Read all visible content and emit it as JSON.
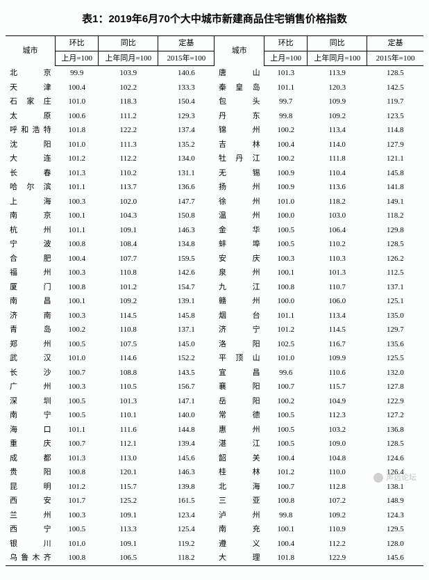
{
  "title": "表1：2019年6月70个大中城市新建商品住宅销售价格指数",
  "header": {
    "city": "城市",
    "mom": "环比",
    "yoy": "同比",
    "base": "定基",
    "mom_sub": "上月=100",
    "yoy_sub": "上年同月=100",
    "base_sub": "2015年=100"
  },
  "rows": [
    {
      "l": {
        "city": "北　　京",
        "mom": "99.9",
        "yoy": "103.9",
        "base": "140.6"
      },
      "r": {
        "city": "唐　　山",
        "mom": "101.3",
        "yoy": "113.9",
        "base": "128.5"
      }
    },
    {
      "l": {
        "city": "天　　津",
        "mom": "100.4",
        "yoy": "102.2",
        "base": "133.3"
      },
      "r": {
        "city": "秦 皇 岛",
        "mom": "101.1",
        "yoy": "120.3",
        "base": "142.5"
      }
    },
    {
      "l": {
        "city": "石 家 庄",
        "mom": "101.0",
        "yoy": "118.3",
        "base": "150.4"
      },
      "r": {
        "city": "包　　头",
        "mom": "99.7",
        "yoy": "109.9",
        "base": "119.7"
      }
    },
    {
      "l": {
        "city": "太　　原",
        "mom": "100.6",
        "yoy": "111.2",
        "base": "129.3"
      },
      "r": {
        "city": "丹　　东",
        "mom": "99.8",
        "yoy": "109.2",
        "base": "123.5"
      }
    },
    {
      "l": {
        "city": "呼和浩特",
        "mom": "101.8",
        "yoy": "122.2",
        "base": "137.4"
      },
      "r": {
        "city": "锦　　州",
        "mom": "100.2",
        "yoy": "113.4",
        "base": "114.8"
      }
    },
    {
      "l": {
        "city": "沈　　阳",
        "mom": "101.0",
        "yoy": "111.3",
        "base": "135.2"
      },
      "r": {
        "city": "吉　　林",
        "mom": "100.4",
        "yoy": "114.0",
        "base": "127.9"
      }
    },
    {
      "l": {
        "city": "大　　连",
        "mom": "101.2",
        "yoy": "112.2",
        "base": "134.0"
      },
      "r": {
        "city": "牡 丹 江",
        "mom": "100.2",
        "yoy": "111.8",
        "base": "121.1"
      }
    },
    {
      "l": {
        "city": "长　　春",
        "mom": "101.3",
        "yoy": "110.2",
        "base": "131.1"
      },
      "r": {
        "city": "无　　锡",
        "mom": "100.9",
        "yoy": "110.4",
        "base": "145.8"
      }
    },
    {
      "l": {
        "city": "哈 尔 滨",
        "mom": "101.1",
        "yoy": "113.7",
        "base": "136.6"
      },
      "r": {
        "city": "扬　　州",
        "mom": "100.9",
        "yoy": "113.6",
        "base": "141.8"
      }
    },
    {
      "l": {
        "city": "上　　海",
        "mom": "100.3",
        "yoy": "102.0",
        "base": "147.7"
      },
      "r": {
        "city": "徐　　州",
        "mom": "101.0",
        "yoy": "118.2",
        "base": "149.1"
      }
    },
    {
      "l": {
        "city": "南　　京",
        "mom": "100.1",
        "yoy": "104.3",
        "base": "150.8"
      },
      "r": {
        "city": "温　　州",
        "mom": "100.0",
        "yoy": "103.0",
        "base": "118.2"
      }
    },
    {
      "l": {
        "city": "杭　　州",
        "mom": "101.1",
        "yoy": "109.1",
        "base": "146.3"
      },
      "r": {
        "city": "金　　华",
        "mom": "100.5",
        "yoy": "106.4",
        "base": "129.8"
      }
    },
    {
      "l": {
        "city": "宁　　波",
        "mom": "100.8",
        "yoy": "108.4",
        "base": "134.8"
      },
      "r": {
        "city": "蚌　　埠",
        "mom": "100.5",
        "yoy": "110.2",
        "base": "128.5"
      }
    },
    {
      "l": {
        "city": "合　　肥",
        "mom": "100.4",
        "yoy": "107.7",
        "base": "159.5"
      },
      "r": {
        "city": "安　　庆",
        "mom": "100.3",
        "yoy": "110.3",
        "base": "126.2"
      }
    },
    {
      "l": {
        "city": "福　　州",
        "mom": "100.3",
        "yoy": "110.8",
        "base": "142.6"
      },
      "r": {
        "city": "泉　　州",
        "mom": "100.1",
        "yoy": "101.3",
        "base": "112.5"
      }
    },
    {
      "l": {
        "city": "厦　　门",
        "mom": "100.8",
        "yoy": "101.2",
        "base": "154.7"
      },
      "r": {
        "city": "九　　江",
        "mom": "100.8",
        "yoy": "110.7",
        "base": "137.1"
      }
    },
    {
      "l": {
        "city": "南　　昌",
        "mom": "100.1",
        "yoy": "109.2",
        "base": "139.1"
      },
      "r": {
        "city": "赣　　州",
        "mom": "100.0",
        "yoy": "106.0",
        "base": "125.1"
      }
    },
    {
      "l": {
        "city": "济　　南",
        "mom": "100.3",
        "yoy": "114.5",
        "base": "145.8"
      },
      "r": {
        "city": "烟　　台",
        "mom": "101.1",
        "yoy": "113.4",
        "base": "135.0"
      }
    },
    {
      "l": {
        "city": "青　　岛",
        "mom": "100.2",
        "yoy": "110.8",
        "base": "137.1"
      },
      "r": {
        "city": "济　　宁",
        "mom": "101.2",
        "yoy": "114.5",
        "base": "129.7"
      }
    },
    {
      "l": {
        "city": "郑　　州",
        "mom": "100.5",
        "yoy": "107.5",
        "base": "145.0"
      },
      "r": {
        "city": "洛　　阳",
        "mom": "102.5",
        "yoy": "116.7",
        "base": "135.6"
      }
    },
    {
      "l": {
        "city": "武　　汉",
        "mom": "101.0",
        "yoy": "114.6",
        "base": "152.2"
      },
      "r": {
        "city": "平 顶 山",
        "mom": "101.0",
        "yoy": "109.9",
        "base": "125.5"
      }
    },
    {
      "l": {
        "city": "长　　沙",
        "mom": "100.7",
        "yoy": "108.8",
        "base": "143.5"
      },
      "r": {
        "city": "宜　　昌",
        "mom": "99.6",
        "yoy": "110.6",
        "base": "132.0"
      }
    },
    {
      "l": {
        "city": "广　　州",
        "mom": "100.3",
        "yoy": "110.5",
        "base": "156.7"
      },
      "r": {
        "city": "襄　　阳",
        "mom": "100.7",
        "yoy": "115.7",
        "base": "127.8"
      }
    },
    {
      "l": {
        "city": "深　　圳",
        "mom": "100.5",
        "yoy": "101.3",
        "base": "147.1"
      },
      "r": {
        "city": "岳　　阳",
        "mom": "100.2",
        "yoy": "104.9",
        "base": "122.9"
      }
    },
    {
      "l": {
        "city": "南　　宁",
        "mom": "100.5",
        "yoy": "110.1",
        "base": "140.0"
      },
      "r": {
        "city": "常　　德",
        "mom": "100.5",
        "yoy": "112.3",
        "base": "127.2"
      }
    },
    {
      "l": {
        "city": "海　　口",
        "mom": "101.1",
        "yoy": "111.6",
        "base": "144.8"
      },
      "r": {
        "city": "惠　　州",
        "mom": "100.5",
        "yoy": "103.2",
        "base": "136.8"
      }
    },
    {
      "l": {
        "city": "重　　庆",
        "mom": "100.7",
        "yoy": "112.1",
        "base": "139.4"
      },
      "r": {
        "city": "湛　　江",
        "mom": "100.5",
        "yoy": "109.0",
        "base": "128.5"
      }
    },
    {
      "l": {
        "city": "成　　都",
        "mom": "101.3",
        "yoy": "113.0",
        "base": "145.6"
      },
      "r": {
        "city": "韶　　关",
        "mom": "100.4",
        "yoy": "104.8",
        "base": "124.6"
      }
    },
    {
      "l": {
        "city": "贵　　阳",
        "mom": "100.8",
        "yoy": "120.1",
        "base": "146.3"
      },
      "r": {
        "city": "桂　　林",
        "mom": "101.2",
        "yoy": "110.0",
        "base": "126.4"
      }
    },
    {
      "l": {
        "city": "昆　　明",
        "mom": "101.2",
        "yoy": "115.7",
        "base": "139.8"
      },
      "r": {
        "city": "北　　海",
        "mom": "100.7",
        "yoy": "112.8",
        "base": "138.1"
      }
    },
    {
      "l": {
        "city": "西　　安",
        "mom": "101.7",
        "yoy": "125.2",
        "base": "161.5"
      },
      "r": {
        "city": "三　　亚",
        "mom": "100.8",
        "yoy": "107.2",
        "base": "148.9"
      }
    },
    {
      "l": {
        "city": "兰　　州",
        "mom": "100.3",
        "yoy": "109.1",
        "base": "123.4"
      },
      "r": {
        "city": "泸　　州",
        "mom": "99.8",
        "yoy": "109.2",
        "base": "124.3"
      }
    },
    {
      "l": {
        "city": "西　　宁",
        "mom": "100.5",
        "yoy": "113.3",
        "base": "125.4"
      },
      "r": {
        "city": "南　　充",
        "mom": "100.1",
        "yoy": "110.9",
        "base": "129.5"
      }
    },
    {
      "l": {
        "city": "银　　川",
        "mom": "101.0",
        "yoy": "109.1",
        "base": "119.2"
      },
      "r": {
        "city": "遵　　义",
        "mom": "100.4",
        "yoy": "112.2",
        "base": "128.0"
      }
    },
    {
      "l": {
        "city": "乌鲁木齐",
        "mom": "100.8",
        "yoy": "106.5",
        "base": "118.2"
      },
      "r": {
        "city": "大　　理",
        "mom": "101.8",
        "yoy": "122.9",
        "base": "145.6"
      }
    }
  ],
  "watermark": "声远论坛"
}
